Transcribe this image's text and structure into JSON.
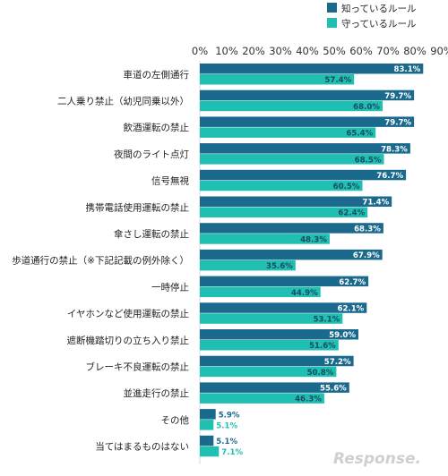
{
  "chart_data": {
    "type": "bar",
    "orientation": "horizontal",
    "categories": [
      "車道の左側通行",
      "二人乗り禁止（幼児同乗以外）",
      "飲酒運転の禁止",
      "夜間のライト点灯",
      "信号無視",
      "携帯電話使用運転の禁止",
      "傘さし運転の禁止",
      "歩道通行の禁止（※下記記載の例外除く）",
      "一時停止",
      "イヤホンなど使用運転の禁止",
      "遮断機踏切りの立ち入り禁止",
      "ブレーキ不良運転の禁止",
      "並進走行の禁止",
      "その他",
      "当てはまるものはない"
    ],
    "series": [
      {
        "name": "知っているルール",
        "color": "#1b6a8e",
        "values": [
          83.1,
          79.7,
          79.7,
          78.3,
          76.7,
          71.4,
          68.3,
          67.9,
          62.7,
          62.1,
          59.0,
          57.2,
          55.6,
          5.9,
          5.1
        ],
        "labels": [
          "83.1%",
          "79.7%",
          "79.7%",
          "78.3%",
          "76.7%",
          "71.4%",
          "68.3%",
          "67.9%",
          "62.7%",
          "62.1%",
          "59.0%",
          "57.2%",
          "55.6%",
          "5.9%",
          "5.1%"
        ]
      },
      {
        "name": "守っているルール",
        "color": "#1fbfb1",
        "values": [
          57.4,
          68.0,
          65.4,
          68.5,
          60.5,
          62.4,
          48.3,
          35.6,
          44.9,
          53.1,
          51.6,
          50.8,
          46.3,
          5.1,
          7.1
        ],
        "labels": [
          "57.4%",
          "68.0%",
          "65.4%",
          "68.5%",
          "60.5%",
          "62.4%",
          "48.3%",
          "35.6%",
          "44.9%",
          "53.1%",
          "51.6%",
          "50.8%",
          "46.3%",
          "5.1%",
          "7.1%"
        ]
      }
    ],
    "xlim": [
      0,
      90
    ],
    "xticks": [
      0,
      10,
      20,
      30,
      40,
      50,
      60,
      70,
      80,
      90
    ],
    "xtick_labels": [
      "0%",
      "10%",
      "20%",
      "30%",
      "40%",
      "50%",
      "60%",
      "70%",
      "80%",
      "90%"
    ],
    "axis_position": "top",
    "legend_position": "top-right",
    "grid": false
  },
  "watermark": "Response."
}
